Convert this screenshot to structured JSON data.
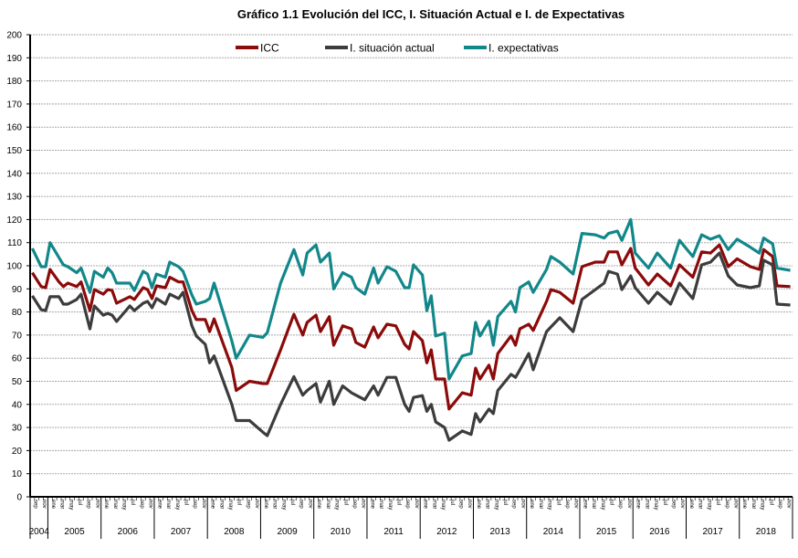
{
  "chart_data": {
    "type": "line",
    "title": "Gráfico 1.1 Evolución del ICC, I. Situación Actual e I. de Expectativas",
    "xlabel": "",
    "ylabel": "",
    "ylim": [
      0,
      200
    ],
    "yticks": [
      "0",
      "10",
      "20",
      "30",
      "40",
      "50",
      "60",
      "70",
      "80",
      "90",
      "100",
      "110",
      "120",
      "130",
      "140",
      "150",
      "160",
      "170",
      "180",
      "190",
      "200"
    ],
    "xlim": [
      "2004-09",
      "2018-12"
    ],
    "year_labels": [
      "2004",
      "2005",
      "2006",
      "2007",
      "2008",
      "2009",
      "2010",
      "2011",
      "2012",
      "2013",
      "2014",
      "2015",
      "2016",
      "2017",
      "2018"
    ],
    "month_tick_labels": [
      "ene",
      "mar",
      "may",
      "jul",
      "sep",
      "nov"
    ],
    "grid": true,
    "legend_position": "top",
    "x": [
      "2004-09",
      "2004-11",
      "2004-12",
      "2005-01",
      "2005-03",
      "2005-04",
      "2005-05",
      "2005-07",
      "2005-08",
      "2005-10",
      "2005-11",
      "2006-01",
      "2006-02",
      "2006-03",
      "2006-04",
      "2006-07",
      "2006-08",
      "2006-10",
      "2006-11",
      "2006-12",
      "2007-01",
      "2007-03",
      "2007-04",
      "2007-06",
      "2007-07",
      "2007-09",
      "2007-10",
      "2007-12",
      "2008-01",
      "2008-02",
      "2008-06",
      "2008-07",
      "2008-10",
      "2009-01",
      "2009-02",
      "2009-05",
      "2009-08",
      "2009-10",
      "2009-11",
      "2010-01",
      "2010-02",
      "2010-04",
      "2010-05",
      "2010-07",
      "2010-09",
      "2010-10",
      "2010-12",
      "2011-02",
      "2011-03",
      "2011-05",
      "2011-07",
      "2011-09",
      "2011-10",
      "2011-11",
      "2012-01",
      "2012-02",
      "2012-03",
      "2012-04",
      "2012-06",
      "2012-07",
      "2012-10",
      "2012-12",
      "2013-01",
      "2013-02",
      "2013-04",
      "2013-05",
      "2013-06",
      "2013-09",
      "2013-10",
      "2013-11",
      "2014-01",
      "2014-02",
      "2014-05",
      "2014-06",
      "2014-08",
      "2014-11",
      "2015-01",
      "2015-04",
      "2015-06",
      "2015-07",
      "2015-09",
      "2015-10",
      "2015-12",
      "2016-01",
      "2016-04",
      "2016-06",
      "2016-09",
      "2016-11",
      "2017-02",
      "2017-04",
      "2017-06",
      "2017-08",
      "2017-10",
      "2017-12",
      "2018-03",
      "2018-05",
      "2018-06",
      "2018-08",
      "2018-09",
      "2018-12"
    ],
    "series": [
      {
        "name": "ICC",
        "color": "#8b0a0a",
        "values": [
          97,
          91,
          90.5,
          98.4,
          93,
          91,
          92.5,
          91,
          93,
          80.6,
          89.7,
          87.7,
          89.7,
          89.3,
          83.8,
          86.6,
          85.4,
          90.5,
          89.7,
          85.8,
          91.3,
          90.5,
          95,
          93,
          93,
          80.6,
          76.7,
          76.7,
          71.5,
          77,
          56,
          46,
          50,
          49,
          49,
          63.6,
          79,
          70,
          75.5,
          78.6,
          71.5,
          78,
          65.6,
          74,
          72.7,
          66.8,
          64.8,
          73.5,
          68.8,
          74.7,
          74,
          66,
          64,
          71.5,
          67.6,
          58,
          63.6,
          51,
          51,
          38,
          45,
          44,
          55.7,
          51,
          57,
          51,
          62,
          69.6,
          65.6,
          72.7,
          74.7,
          72,
          84.6,
          89.7,
          88.5,
          83.8,
          99.6,
          101.6,
          101.6,
          106,
          106,
          100.4,
          107.5,
          99,
          91.7,
          96.4,
          91.3,
          100.4,
          95,
          106,
          105.5,
          109,
          99.6,
          103,
          99.6,
          98.4,
          107,
          104,
          91.3,
          91
        ]
      },
      {
        "name": "I. situación actual",
        "color": "#3c3c3c",
        "values": [
          87,
          81,
          80.6,
          86.6,
          86.6,
          83.4,
          83.4,
          85.4,
          87.7,
          72.7,
          82.6,
          78.6,
          79.4,
          78.6,
          75.9,
          82.6,
          80.6,
          83.8,
          84.6,
          81.8,
          85.8,
          83.4,
          87.7,
          85.8,
          88.5,
          74,
          69.6,
          66,
          58,
          61,
          40,
          33,
          33,
          28,
          26.5,
          40,
          52,
          44,
          46,
          49,
          41,
          50,
          40,
          48,
          45,
          44,
          42,
          48,
          44,
          51.7,
          51.7,
          40,
          37,
          43,
          43.8,
          37,
          40,
          32.4,
          30,
          24.5,
          28.5,
          27,
          36,
          32.4,
          38,
          36,
          46,
          53,
          51.7,
          55,
          62,
          55,
          71.5,
          73.5,
          77.5,
          71.5,
          85.4,
          89.7,
          92.5,
          97.6,
          96.4,
          89.7,
          95.6,
          90.5,
          83.8,
          88.5,
          83.4,
          92.5,
          85.8,
          100.4,
          101.6,
          105.5,
          95.6,
          91.7,
          90.5,
          91.3,
          102.4,
          100.4,
          83.4,
          83
        ]
      },
      {
        "name": "I. expectativas",
        "color": "#12878a",
        "values": [
          107.5,
          99.6,
          99.6,
          110,
          103.5,
          100.4,
          99.6,
          97,
          99,
          88.5,
          97.6,
          95,
          99,
          97,
          92.5,
          92.5,
          89.3,
          97.6,
          96.4,
          90.5,
          96.4,
          95,
          101.6,
          99.6,
          97.6,
          87.3,
          83.4,
          84.6,
          85.8,
          92.5,
          67.5,
          60,
          70,
          69,
          71,
          92.5,
          107,
          96,
          105.5,
          109,
          101.6,
          105.5,
          90,
          97,
          95,
          90.5,
          87.7,
          99,
          92.5,
          99.6,
          97.6,
          90.5,
          90.5,
          100.4,
          96,
          80.6,
          87,
          69.6,
          70.8,
          51,
          61,
          62,
          75.5,
          69.6,
          76,
          65.6,
          78,
          84.6,
          80,
          90.5,
          93,
          88.5,
          98.4,
          104,
          101.6,
          96.4,
          114,
          113.4,
          112,
          114,
          115,
          111,
          120,
          105.5,
          99,
          105.5,
          99,
          111,
          104,
          113.4,
          111.5,
          113,
          107,
          111.5,
          108,
          105.5,
          112,
          109.5,
          99,
          98
        ]
      }
    ]
  }
}
